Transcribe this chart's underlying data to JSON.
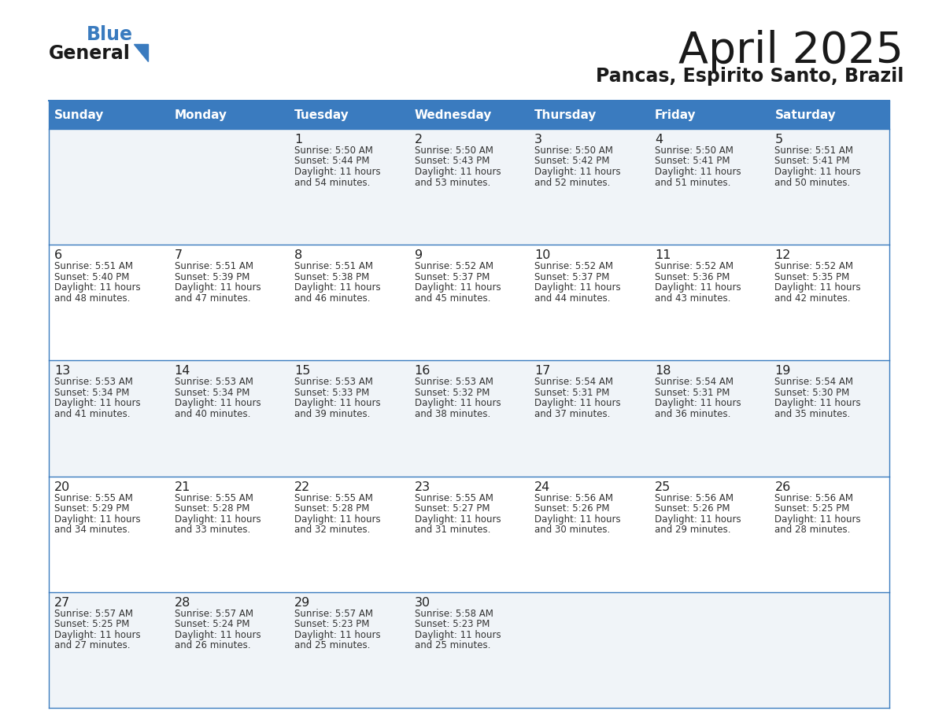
{
  "title": "April 2025",
  "subtitle": "Pancas, Espirito Santo, Brazil",
  "header_bg": "#3a7bbf",
  "header_text_color": "#ffffff",
  "cell_bg_even": "#f0f4f8",
  "cell_bg_odd": "#ffffff",
  "border_color": "#3a7bbf",
  "text_color": "#333333",
  "days_of_week": [
    "Sunday",
    "Monday",
    "Tuesday",
    "Wednesday",
    "Thursday",
    "Friday",
    "Saturday"
  ],
  "calendar": [
    [
      {
        "day": "",
        "sunrise": "",
        "sunset": "",
        "daylight_line1": "",
        "daylight_line2": ""
      },
      {
        "day": "",
        "sunrise": "",
        "sunset": "",
        "daylight_line1": "",
        "daylight_line2": ""
      },
      {
        "day": "1",
        "sunrise": "Sunrise: 5:50 AM",
        "sunset": "Sunset: 5:44 PM",
        "daylight_line1": "Daylight: 11 hours",
        "daylight_line2": "and 54 minutes."
      },
      {
        "day": "2",
        "sunrise": "Sunrise: 5:50 AM",
        "sunset": "Sunset: 5:43 PM",
        "daylight_line1": "Daylight: 11 hours",
        "daylight_line2": "and 53 minutes."
      },
      {
        "day": "3",
        "sunrise": "Sunrise: 5:50 AM",
        "sunset": "Sunset: 5:42 PM",
        "daylight_line1": "Daylight: 11 hours",
        "daylight_line2": "and 52 minutes."
      },
      {
        "day": "4",
        "sunrise": "Sunrise: 5:50 AM",
        "sunset": "Sunset: 5:41 PM",
        "daylight_line1": "Daylight: 11 hours",
        "daylight_line2": "and 51 minutes."
      },
      {
        "day": "5",
        "sunrise": "Sunrise: 5:51 AM",
        "sunset": "Sunset: 5:41 PM",
        "daylight_line1": "Daylight: 11 hours",
        "daylight_line2": "and 50 minutes."
      }
    ],
    [
      {
        "day": "6",
        "sunrise": "Sunrise: 5:51 AM",
        "sunset": "Sunset: 5:40 PM",
        "daylight_line1": "Daylight: 11 hours",
        "daylight_line2": "and 48 minutes."
      },
      {
        "day": "7",
        "sunrise": "Sunrise: 5:51 AM",
        "sunset": "Sunset: 5:39 PM",
        "daylight_line1": "Daylight: 11 hours",
        "daylight_line2": "and 47 minutes."
      },
      {
        "day": "8",
        "sunrise": "Sunrise: 5:51 AM",
        "sunset": "Sunset: 5:38 PM",
        "daylight_line1": "Daylight: 11 hours",
        "daylight_line2": "and 46 minutes."
      },
      {
        "day": "9",
        "sunrise": "Sunrise: 5:52 AM",
        "sunset": "Sunset: 5:37 PM",
        "daylight_line1": "Daylight: 11 hours",
        "daylight_line2": "and 45 minutes."
      },
      {
        "day": "10",
        "sunrise": "Sunrise: 5:52 AM",
        "sunset": "Sunset: 5:37 PM",
        "daylight_line1": "Daylight: 11 hours",
        "daylight_line2": "and 44 minutes."
      },
      {
        "day": "11",
        "sunrise": "Sunrise: 5:52 AM",
        "sunset": "Sunset: 5:36 PM",
        "daylight_line1": "Daylight: 11 hours",
        "daylight_line2": "and 43 minutes."
      },
      {
        "day": "12",
        "sunrise": "Sunrise: 5:52 AM",
        "sunset": "Sunset: 5:35 PM",
        "daylight_line1": "Daylight: 11 hours",
        "daylight_line2": "and 42 minutes."
      }
    ],
    [
      {
        "day": "13",
        "sunrise": "Sunrise: 5:53 AM",
        "sunset": "Sunset: 5:34 PM",
        "daylight_line1": "Daylight: 11 hours",
        "daylight_line2": "and 41 minutes."
      },
      {
        "day": "14",
        "sunrise": "Sunrise: 5:53 AM",
        "sunset": "Sunset: 5:34 PM",
        "daylight_line1": "Daylight: 11 hours",
        "daylight_line2": "and 40 minutes."
      },
      {
        "day": "15",
        "sunrise": "Sunrise: 5:53 AM",
        "sunset": "Sunset: 5:33 PM",
        "daylight_line1": "Daylight: 11 hours",
        "daylight_line2": "and 39 minutes."
      },
      {
        "day": "16",
        "sunrise": "Sunrise: 5:53 AM",
        "sunset": "Sunset: 5:32 PM",
        "daylight_line1": "Daylight: 11 hours",
        "daylight_line2": "and 38 minutes."
      },
      {
        "day": "17",
        "sunrise": "Sunrise: 5:54 AM",
        "sunset": "Sunset: 5:31 PM",
        "daylight_line1": "Daylight: 11 hours",
        "daylight_line2": "and 37 minutes."
      },
      {
        "day": "18",
        "sunrise": "Sunrise: 5:54 AM",
        "sunset": "Sunset: 5:31 PM",
        "daylight_line1": "Daylight: 11 hours",
        "daylight_line2": "and 36 minutes."
      },
      {
        "day": "19",
        "sunrise": "Sunrise: 5:54 AM",
        "sunset": "Sunset: 5:30 PM",
        "daylight_line1": "Daylight: 11 hours",
        "daylight_line2": "and 35 minutes."
      }
    ],
    [
      {
        "day": "20",
        "sunrise": "Sunrise: 5:55 AM",
        "sunset": "Sunset: 5:29 PM",
        "daylight_line1": "Daylight: 11 hours",
        "daylight_line2": "and 34 minutes."
      },
      {
        "day": "21",
        "sunrise": "Sunrise: 5:55 AM",
        "sunset": "Sunset: 5:28 PM",
        "daylight_line1": "Daylight: 11 hours",
        "daylight_line2": "and 33 minutes."
      },
      {
        "day": "22",
        "sunrise": "Sunrise: 5:55 AM",
        "sunset": "Sunset: 5:28 PM",
        "daylight_line1": "Daylight: 11 hours",
        "daylight_line2": "and 32 minutes."
      },
      {
        "day": "23",
        "sunrise": "Sunrise: 5:55 AM",
        "sunset": "Sunset: 5:27 PM",
        "daylight_line1": "Daylight: 11 hours",
        "daylight_line2": "and 31 minutes."
      },
      {
        "day": "24",
        "sunrise": "Sunrise: 5:56 AM",
        "sunset": "Sunset: 5:26 PM",
        "daylight_line1": "Daylight: 11 hours",
        "daylight_line2": "and 30 minutes."
      },
      {
        "day": "25",
        "sunrise": "Sunrise: 5:56 AM",
        "sunset": "Sunset: 5:26 PM",
        "daylight_line1": "Daylight: 11 hours",
        "daylight_line2": "and 29 minutes."
      },
      {
        "day": "26",
        "sunrise": "Sunrise: 5:56 AM",
        "sunset": "Sunset: 5:25 PM",
        "daylight_line1": "Daylight: 11 hours",
        "daylight_line2": "and 28 minutes."
      }
    ],
    [
      {
        "day": "27",
        "sunrise": "Sunrise: 5:57 AM",
        "sunset": "Sunset: 5:25 PM",
        "daylight_line1": "Daylight: 11 hours",
        "daylight_line2": "and 27 minutes."
      },
      {
        "day": "28",
        "sunrise": "Sunrise: 5:57 AM",
        "sunset": "Sunset: 5:24 PM",
        "daylight_line1": "Daylight: 11 hours",
        "daylight_line2": "and 26 minutes."
      },
      {
        "day": "29",
        "sunrise": "Sunrise: 5:57 AM",
        "sunset": "Sunset: 5:23 PM",
        "daylight_line1": "Daylight: 11 hours",
        "daylight_line2": "and 25 minutes."
      },
      {
        "day": "30",
        "sunrise": "Sunrise: 5:58 AM",
        "sunset": "Sunset: 5:23 PM",
        "daylight_line1": "Daylight: 11 hours",
        "daylight_line2": "and 25 minutes."
      },
      {
        "day": "",
        "sunrise": "",
        "sunset": "",
        "daylight_line1": "",
        "daylight_line2": ""
      },
      {
        "day": "",
        "sunrise": "",
        "sunset": "",
        "daylight_line1": "",
        "daylight_line2": ""
      },
      {
        "day": "",
        "sunrise": "",
        "sunset": "",
        "daylight_line1": "",
        "daylight_line2": ""
      }
    ]
  ]
}
